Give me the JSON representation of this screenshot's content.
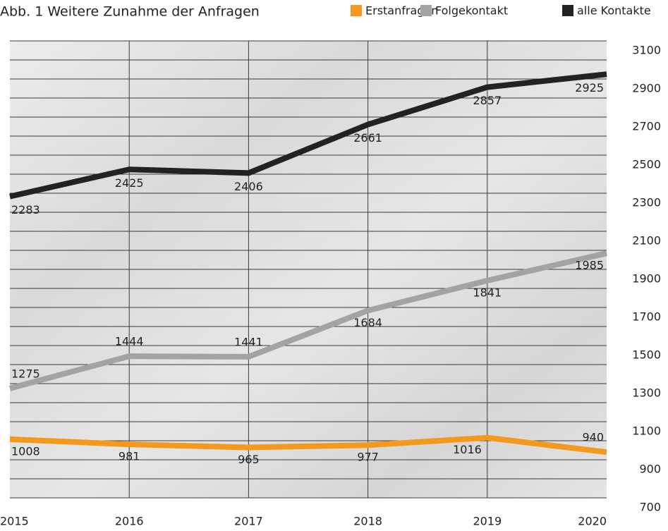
{
  "chart_data": {
    "type": "line",
    "title": "Abb. 1  Weitere Zunahme der Anfragen",
    "x": [
      2015,
      2016,
      2017,
      2018,
      2019,
      2020
    ],
    "series": [
      {
        "name": "Erstanfragen",
        "color": "#f39a1e",
        "values": [
          1008,
          981,
          965,
          977,
          1016,
          940
        ]
      },
      {
        "name": "Folgekontakt",
        "color": "#a3a3a3",
        "values": [
          1275,
          1444,
          1441,
          1684,
          1841,
          1985
        ]
      },
      {
        "name": "alle Kontakte",
        "color": "#222222",
        "values": [
          2283,
          2425,
          2406,
          2661,
          2857,
          2925
        ]
      }
    ],
    "xlim": [
      2015,
      2020
    ],
    "ylim": [
      700,
      3100
    ],
    "yticks": [
      700,
      900,
      1100,
      1300,
      1500,
      1700,
      1900,
      2100,
      2300,
      2500,
      2700,
      2900,
      3100
    ],
    "grid": true,
    "legend": "top-right"
  }
}
